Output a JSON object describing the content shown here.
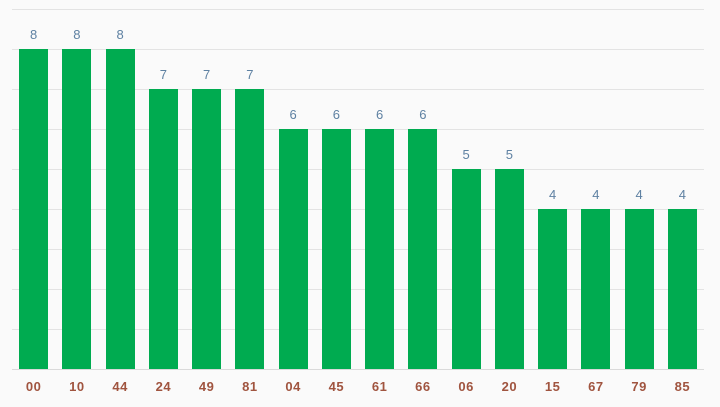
{
  "chart": {
    "background_color": "#fafafa",
    "bar_color": "#00ab50",
    "annotation_color": "#5e81a2",
    "xlabel_color": "#a0543f",
    "gridline_color": "#e3e3e3",
    "baseline_color": "#dadada"
  },
  "chart_data": {
    "type": "bar",
    "categories": [
      "00",
      "10",
      "44",
      "24",
      "49",
      "81",
      "04",
      "45",
      "61",
      "66",
      "06",
      "20",
      "15",
      "67",
      "79",
      "85"
    ],
    "values": [
      8,
      8,
      8,
      7,
      7,
      7,
      6,
      6,
      6,
      6,
      5,
      5,
      4,
      4,
      4,
      4
    ],
    "title": "",
    "xlabel": "",
    "ylabel": "",
    "ylim": [
      0,
      9
    ],
    "grid": true,
    "gridline_step": 1,
    "legend": "none",
    "annotations": "value above each bar",
    "bar_labels_position": "below baseline"
  }
}
